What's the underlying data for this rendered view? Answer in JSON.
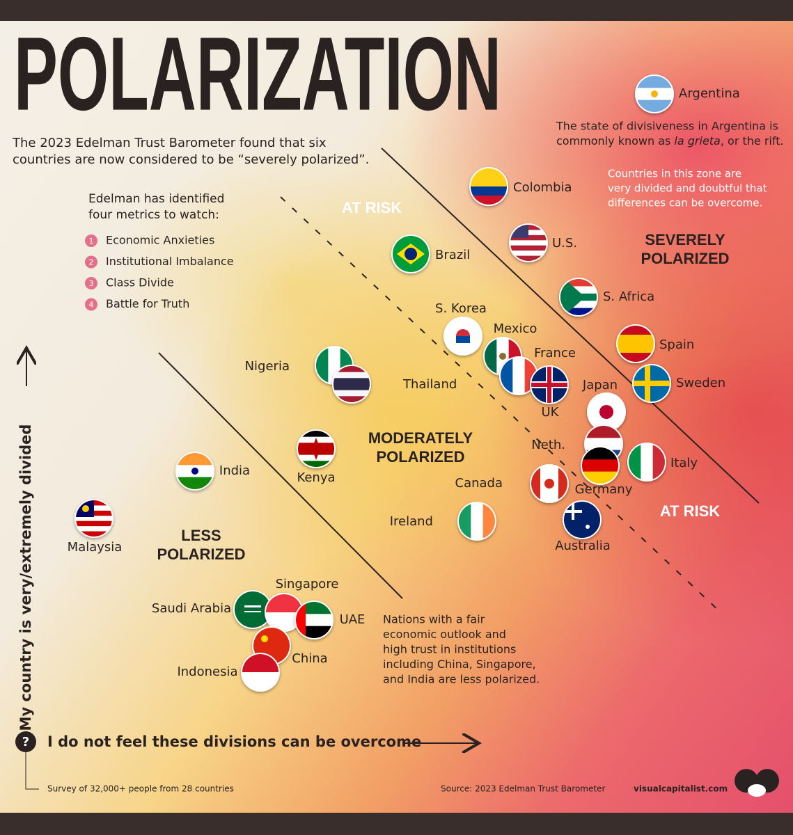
{
  "title": "POLARIZATION",
  "intro": [
    "The 2023 Edelman Trust Barometer found that six",
    "countries are now considered to be “severely polarized”."
  ],
  "metrics_intro": [
    "Edelman has identified",
    "four metrics to watch:"
  ],
  "metrics": [
    {
      "number": "1",
      "label": "Economic Anxieties"
    },
    {
      "number": "2",
      "label": "Institutional Imbalance"
    },
    {
      "number": "3",
      "label": "Class Divide"
    },
    {
      "number": "4",
      "label": "Battle for Truth"
    }
  ],
  "zones": {
    "at_risk_top": "AT RISK",
    "at_risk_bottom": "AT RISK",
    "severely": [
      "SEVERELY",
      "POLARIZED"
    ],
    "moderately": [
      "MODERATELY",
      "POLARIZED"
    ],
    "less": [
      "LESS",
      "POLARIZED"
    ]
  },
  "argentina_note": {
    "line1": "The state of divisiveness in Argentina is",
    "line2_start": "commonly known as ",
    "line2_italic": "la grieta",
    "line2_end": ", or the rift."
  },
  "severe_note": [
    "Countries in this zone are",
    "very divided and doubtful that",
    "differences can be overcome."
  ],
  "less_note": [
    "Nations with a fair",
    "economic outlook and",
    "high trust in institutions",
    "including China, Singapore,",
    "and India are less polarized."
  ],
  "countries": [
    "Argentina",
    "Colombia",
    "U.S.",
    "Brazil",
    "S. Africa",
    "S. Korea",
    "Mexico",
    "France",
    "UK",
    "Spain",
    "Sweden",
    "Japan",
    "Neth.",
    "Italy",
    "Germany",
    "Canada",
    "Australia",
    "Ireland",
    "Nigeria",
    "Thailand",
    "Kenya",
    "India",
    "Malaysia",
    "Saudi Arabia",
    "Singapore",
    "UAE",
    "China",
    "Indonesia"
  ],
  "y_axis_label": "My country is very/extremely divided",
  "x_axis_icon": "?",
  "x_axis_label": "I do not feel these divisions can be overcome",
  "footer": {
    "survey": "Survey of 32,000+ people from 28 countries",
    "source": "Source: 2023 Edelman Trust Barometer",
    "site": "visualcapitalist.com"
  }
}
